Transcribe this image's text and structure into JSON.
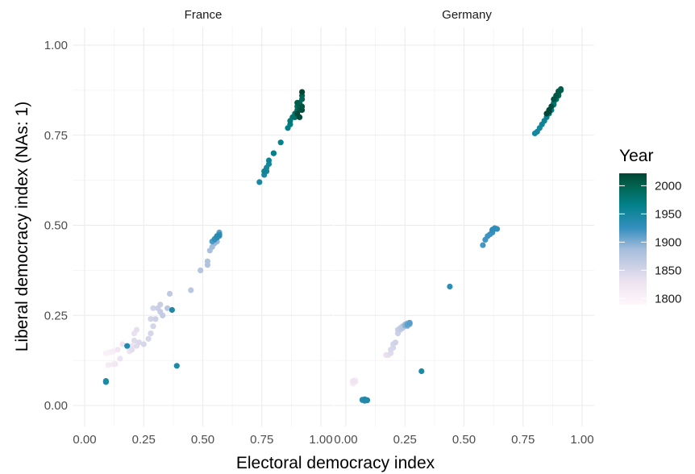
{
  "chart_data": {
    "type": "scatter",
    "xlabel": "Electoral democracy index",
    "ylabel": "Liberal democracy index (NAs: 1)",
    "xlim": [
      0,
      1
    ],
    "ylim": [
      0,
      1
    ],
    "x_ticks": [
      "0.00",
      "0.25",
      "0.50",
      "0.75",
      "1.00"
    ],
    "y_ticks": [
      "0.00",
      "0.25",
      "0.50",
      "0.75",
      "1.00"
    ],
    "grid": true,
    "legend": {
      "title": "Year",
      "type": "colorbar",
      "placement": "right",
      "range": [
        1789,
        2022
      ],
      "ticks": [
        "1800",
        "1850",
        "1900",
        "1950",
        "2000"
      ],
      "colors": [
        "#fff7fb",
        "#ece2f0",
        "#a6bddb",
        "#3690c0",
        "#02818a",
        "#016450",
        "#014636"
      ]
    },
    "panels": [
      {
        "name": "France",
        "points": [
          [
            0.09,
            0.145,
            1800
          ],
          [
            0.1,
            0.146,
            1802
          ],
          [
            0.11,
            0.148,
            1805
          ],
          [
            0.12,
            0.15,
            1808
          ],
          [
            0.1,
            0.112,
            1812
          ],
          [
            0.12,
            0.114,
            1815
          ],
          [
            0.13,
            0.115,
            1818
          ],
          [
            0.14,
            0.155,
            1820
          ],
          [
            0.16,
            0.17,
            1823
          ],
          [
            0.15,
            0.13,
            1826
          ],
          [
            0.19,
            0.15,
            1828
          ],
          [
            0.2,
            0.165,
            1830
          ],
          [
            0.21,
            0.2,
            1832
          ],
          [
            0.22,
            0.21,
            1835
          ],
          [
            0.2,
            0.155,
            1838
          ],
          [
            0.22,
            0.165,
            1840
          ],
          [
            0.21,
            0.18,
            1842
          ],
          [
            0.23,
            0.175,
            1845
          ],
          [
            0.25,
            0.17,
            1848
          ],
          [
            0.27,
            0.185,
            1849
          ],
          [
            0.28,
            0.2,
            1850
          ],
          [
            0.29,
            0.22,
            1851
          ],
          [
            0.28,
            0.24,
            1852
          ],
          [
            0.29,
            0.27,
            1854
          ],
          [
            0.3,
            0.24,
            1856
          ],
          [
            0.31,
            0.27,
            1858
          ],
          [
            0.32,
            0.28,
            1860
          ],
          [
            0.32,
            0.26,
            1862
          ],
          [
            0.33,
            0.25,
            1865
          ],
          [
            0.36,
            0.31,
            1868
          ],
          [
            0.35,
            0.27,
            1871
          ],
          [
            0.45,
            0.32,
            1872
          ],
          [
            0.49,
            0.375,
            1875
          ],
          [
            0.52,
            0.39,
            1878
          ],
          [
            0.52,
            0.4,
            1880
          ],
          [
            0.53,
            0.43,
            1883
          ],
          [
            0.54,
            0.44,
            1886
          ],
          [
            0.55,
            0.45,
            1889
          ],
          [
            0.56,
            0.455,
            1892
          ],
          [
            0.55,
            0.46,
            1895
          ],
          [
            0.56,
            0.465,
            1898
          ],
          [
            0.57,
            0.47,
            1901
          ],
          [
            0.57,
            0.475,
            1904
          ],
          [
            0.57,
            0.478,
            1907
          ],
          [
            0.57,
            0.48,
            1910
          ],
          [
            0.56,
            0.47,
            1913
          ],
          [
            0.54,
            0.455,
            1916
          ],
          [
            0.55,
            0.46,
            1919
          ],
          [
            0.56,
            0.468,
            1922
          ],
          [
            0.57,
            0.472,
            1925
          ],
          [
            0.55,
            0.462,
            1928
          ],
          [
            0.56,
            0.466,
            1931
          ],
          [
            0.57,
            0.474,
            1934
          ],
          [
            0.56,
            0.47,
            1937
          ],
          [
            0.18,
            0.165,
            1940
          ],
          [
            0.09,
            0.065,
            1941
          ],
          [
            0.09,
            0.066,
            1942
          ],
          [
            0.09,
            0.068,
            1943
          ],
          [
            0.37,
            0.265,
            1944
          ],
          [
            0.39,
            0.11,
            1945
          ],
          [
            0.74,
            0.62,
            1946
          ],
          [
            0.76,
            0.64,
            1947
          ],
          [
            0.77,
            0.65,
            1949
          ],
          [
            0.77,
            0.66,
            1951
          ],
          [
            0.78,
            0.67,
            1953
          ],
          [
            0.76,
            0.65,
            1955
          ],
          [
            0.78,
            0.68,
            1957
          ],
          [
            0.8,
            0.7,
            1960
          ],
          [
            0.83,
            0.73,
            1963
          ],
          [
            0.8,
            0.7,
            1966
          ],
          [
            0.86,
            0.77,
            1969
          ],
          [
            0.87,
            0.78,
            1972
          ],
          [
            0.87,
            0.79,
            1975
          ],
          [
            0.88,
            0.8,
            1978
          ],
          [
            0.89,
            0.81,
            1981
          ],
          [
            0.9,
            0.82,
            1984
          ],
          [
            0.89,
            0.8,
            1987
          ],
          [
            0.9,
            0.83,
            1990
          ],
          [
            0.91,
            0.84,
            1993
          ],
          [
            0.92,
            0.85,
            1996
          ],
          [
            0.92,
            0.86,
            1999
          ],
          [
            0.91,
            0.83,
            2002
          ],
          [
            0.9,
            0.84,
            2005
          ],
          [
            0.91,
            0.82,
            2008
          ],
          [
            0.92,
            0.83,
            2011
          ],
          [
            0.92,
            0.82,
            2014
          ],
          [
            0.91,
            0.8,
            2017
          ],
          [
            0.9,
            0.81,
            2020
          ],
          [
            0.92,
            0.87,
            2022
          ]
        ]
      },
      {
        "name": "Germany",
        "points": [
          [
            0.03,
            0.06,
            1800
          ],
          [
            0.03,
            0.065,
            1805
          ],
          [
            0.04,
            0.07,
            1810
          ],
          [
            0.03,
            0.062,
            1815
          ],
          [
            0.04,
            0.066,
            1820
          ],
          [
            0.03,
            0.068,
            1825
          ],
          [
            0.17,
            0.14,
            1830
          ],
          [
            0.18,
            0.14,
            1835
          ],
          [
            0.19,
            0.145,
            1840
          ],
          [
            0.19,
            0.155,
            1845
          ],
          [
            0.2,
            0.16,
            1848
          ],
          [
            0.2,
            0.17,
            1850
          ],
          [
            0.21,
            0.175,
            1853
          ],
          [
            0.22,
            0.2,
            1856
          ],
          [
            0.22,
            0.21,
            1859
          ],
          [
            0.23,
            0.21,
            1862
          ],
          [
            0.23,
            0.215,
            1865
          ],
          [
            0.24,
            0.22,
            1868
          ],
          [
            0.24,
            0.215,
            1871
          ],
          [
            0.25,
            0.22,
            1874
          ],
          [
            0.25,
            0.225,
            1877
          ],
          [
            0.26,
            0.225,
            1880
          ],
          [
            0.26,
            0.22,
            1883
          ],
          [
            0.27,
            0.225,
            1886
          ],
          [
            0.27,
            0.23,
            1889
          ],
          [
            0.26,
            0.228,
            1892
          ],
          [
            0.25,
            0.222,
            1895
          ],
          [
            0.26,
            0.226,
            1898
          ],
          [
            0.27,
            0.228,
            1901
          ],
          [
            0.26,
            0.224,
            1904
          ],
          [
            0.27,
            0.227,
            1907
          ],
          [
            0.26,
            0.223,
            1910
          ],
          [
            0.27,
            0.229,
            1913
          ],
          [
            0.58,
            0.445,
            1919
          ],
          [
            0.59,
            0.46,
            1920
          ],
          [
            0.6,
            0.47,
            1921
          ],
          [
            0.61,
            0.475,
            1922
          ],
          [
            0.62,
            0.48,
            1923
          ],
          [
            0.63,
            0.49,
            1924
          ],
          [
            0.62,
            0.485,
            1925
          ],
          [
            0.63,
            0.492,
            1927
          ],
          [
            0.64,
            0.49,
            1929
          ],
          [
            0.62,
            0.488,
            1931
          ],
          [
            0.44,
            0.33,
            1932
          ],
          [
            0.07,
            0.015,
            1933
          ],
          [
            0.08,
            0.013,
            1935
          ],
          [
            0.07,
            0.016,
            1937
          ],
          [
            0.09,
            0.014,
            1939
          ],
          [
            0.08,
            0.017,
            1941
          ],
          [
            0.09,
            0.015,
            1943
          ],
          [
            0.32,
            0.095,
            1945
          ],
          [
            0.8,
            0.755,
            1949
          ],
          [
            0.81,
            0.76,
            1950
          ],
          [
            0.82,
            0.77,
            1952
          ],
          [
            0.83,
            0.78,
            1955
          ],
          [
            0.84,
            0.79,
            1958
          ],
          [
            0.85,
            0.8,
            1961
          ],
          [
            0.86,
            0.81,
            1964
          ],
          [
            0.86,
            0.82,
            1967
          ],
          [
            0.87,
            0.82,
            1970
          ],
          [
            0.87,
            0.83,
            1973
          ],
          [
            0.88,
            0.835,
            1976
          ],
          [
            0.88,
            0.84,
            1979
          ],
          [
            0.89,
            0.85,
            1982
          ],
          [
            0.89,
            0.85,
            1985
          ],
          [
            0.89,
            0.86,
            1988
          ],
          [
            0.9,
            0.86,
            1991
          ],
          [
            0.9,
            0.865,
            1994
          ],
          [
            0.9,
            0.87,
            1997
          ],
          [
            0.91,
            0.875,
            2000
          ],
          [
            0.91,
            0.878,
            2003
          ],
          [
            0.9,
            0.872,
            2006
          ],
          [
            0.89,
            0.86,
            2009
          ],
          [
            0.88,
            0.85,
            2012
          ],
          [
            0.87,
            0.83,
            2015
          ],
          [
            0.86,
            0.815,
            2018
          ],
          [
            0.85,
            0.81,
            2021
          ],
          [
            0.86,
            0.82,
            2022
          ]
        ]
      }
    ]
  }
}
